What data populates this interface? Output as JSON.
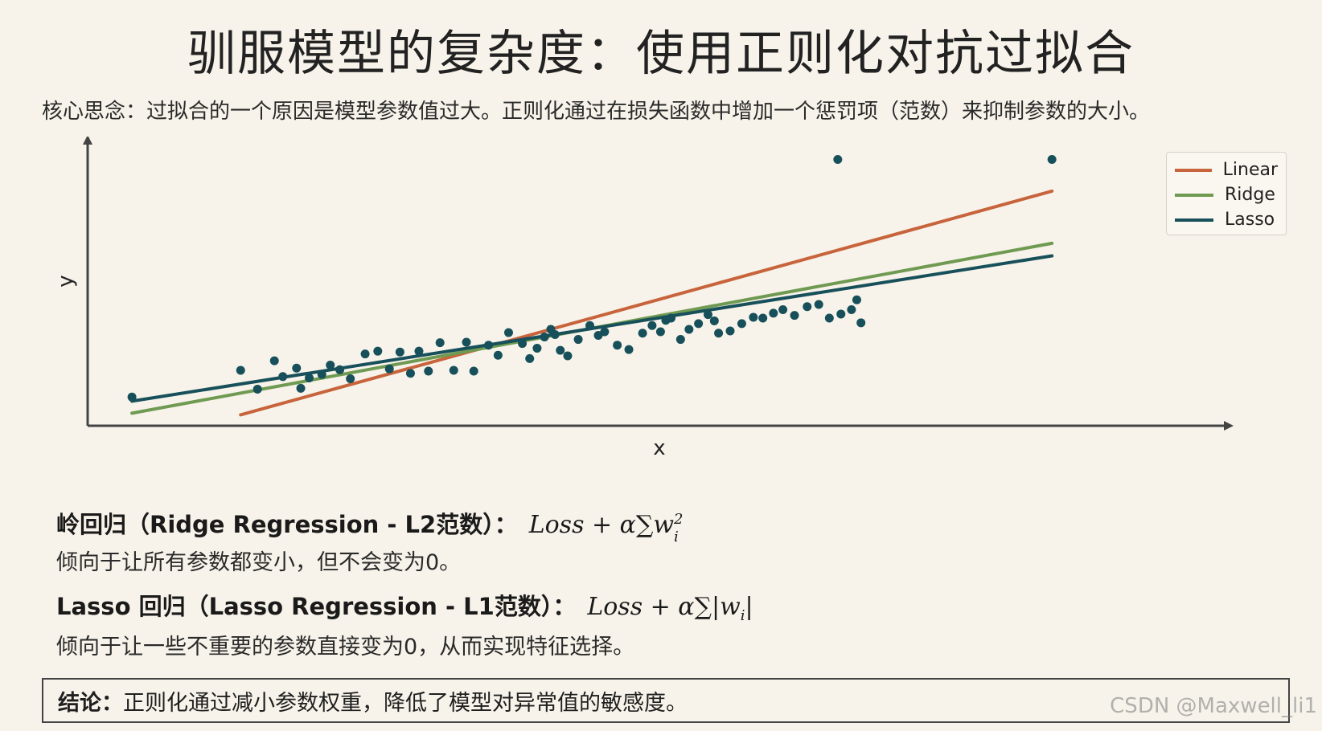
{
  "title": "驯服模型的复杂度：使用正则化对抗过拟合",
  "subtitle": "核心思念：过拟合的一个原因是模型参数值过大。正则化通过在损失函数中增加一个惩罚项（范数）来抑制参数的大小。",
  "ridge": {
    "heading": "岭回归（Ridge Regression -  L2范数）：",
    "formula": "Loss + α∑w",
    "formula_sub": "i",
    "formula_sup": "2",
    "desc": "倾向于让所有参数都变小，但不会变为0。"
  },
  "lasso": {
    "heading": "Lasso 回归（Lasso Regression -  L1范数）：",
    "formula": "Loss + α∑|w",
    "formula_sub": "i",
    "formula_end": "|",
    "desc": "倾向于让一些不重要的参数直接变为0，从而实现特征选择。"
  },
  "conclusion": {
    "label": "结论：",
    "text": "正则化通过减小参数权重，降低了模型对异常值的敏感度。"
  },
  "watermark": "CSDN @Maxwell_li1",
  "colors": {
    "linear": "#c8643c",
    "ridge": "#6f9a52",
    "lasso": "#17505a",
    "points": "#17505a",
    "axis": "#444444"
  },
  "chart_data": {
    "type": "scatter",
    "xlabel": "x",
    "ylabel": "y",
    "xlim": [
      0,
      100
    ],
    "ylim": [
      0,
      100
    ],
    "grid": false,
    "legend_position": "top-right",
    "points": [
      [
        4.2,
        10.5
      ],
      [
        14.5,
        20.3
      ],
      [
        16.1,
        13.4
      ],
      [
        17.7,
        23.8
      ],
      [
        18.5,
        18.0
      ],
      [
        19.8,
        21.1
      ],
      [
        20.2,
        13.7
      ],
      [
        21.0,
        17.5
      ],
      [
        22.2,
        18.8
      ],
      [
        23.0,
        22.2
      ],
      [
        23.9,
        20.5
      ],
      [
        24.9,
        17.2
      ],
      [
        26.3,
        26.3
      ],
      [
        27.5,
        27.3
      ],
      [
        28.6,
        20.8
      ],
      [
        29.6,
        27.0
      ],
      [
        30.6,
        19.2
      ],
      [
        31.4,
        27.3
      ],
      [
        32.3,
        20.0
      ],
      [
        33.4,
        30.4
      ],
      [
        34.7,
        20.3
      ],
      [
        35.9,
        30.6
      ],
      [
        36.6,
        20.0
      ],
      [
        38.0,
        29.5
      ],
      [
        38.9,
        25.8
      ],
      [
        39.9,
        34.1
      ],
      [
        41.2,
        30.1
      ],
      [
        41.9,
        24.6
      ],
      [
        42.6,
        28.4
      ],
      [
        43.3,
        32.5
      ],
      [
        43.9,
        35.3
      ],
      [
        44.3,
        33.4
      ],
      [
        44.8,
        27.6
      ],
      [
        45.5,
        25.6
      ],
      [
        46.5,
        31.6
      ],
      [
        47.6,
        36.7
      ],
      [
        48.4,
        33.1
      ],
      [
        49.0,
        34.4
      ],
      [
        50.2,
        29.5
      ],
      [
        51.3,
        27.9
      ],
      [
        52.6,
        33.9
      ],
      [
        53.5,
        36.7
      ],
      [
        54.3,
        34.4
      ],
      [
        54.8,
        38.6
      ],
      [
        55.3,
        39.4
      ],
      [
        56.2,
        31.6
      ],
      [
        57.0,
        35.3
      ],
      [
        57.9,
        37.4
      ],
      [
        58.8,
        40.7
      ],
      [
        59.4,
        38.4
      ],
      [
        59.8,
        33.9
      ],
      [
        60.9,
        34.7
      ],
      [
        62.0,
        37.4
      ],
      [
        63.1,
        39.7
      ],
      [
        64.0,
        39.4
      ],
      [
        65.0,
        41.2
      ],
      [
        65.9,
        42.5
      ],
      [
        67.0,
        40.4
      ],
      [
        68.2,
        43.6
      ],
      [
        69.3,
        44.4
      ],
      [
        70.3,
        39.4
      ],
      [
        71.4,
        40.9
      ],
      [
        72.4,
        42.5
      ],
      [
        72.9,
        46.1
      ],
      [
        73.3,
        37.7
      ],
      [
        71.1,
        97.5
      ],
      [
        91.4,
        97.5
      ]
    ],
    "series": [
      {
        "name": "Linear",
        "x": [
          14.5,
          91.4
        ],
        "y": [
          4.0,
          85.9
        ]
      },
      {
        "name": "Ridge",
        "x": [
          4.2,
          91.4
        ],
        "y": [
          4.6,
          66.8
        ]
      },
      {
        "name": "Lasso",
        "x": [
          4.2,
          91.4
        ],
        "y": [
          9.0,
          62.2
        ]
      }
    ]
  }
}
